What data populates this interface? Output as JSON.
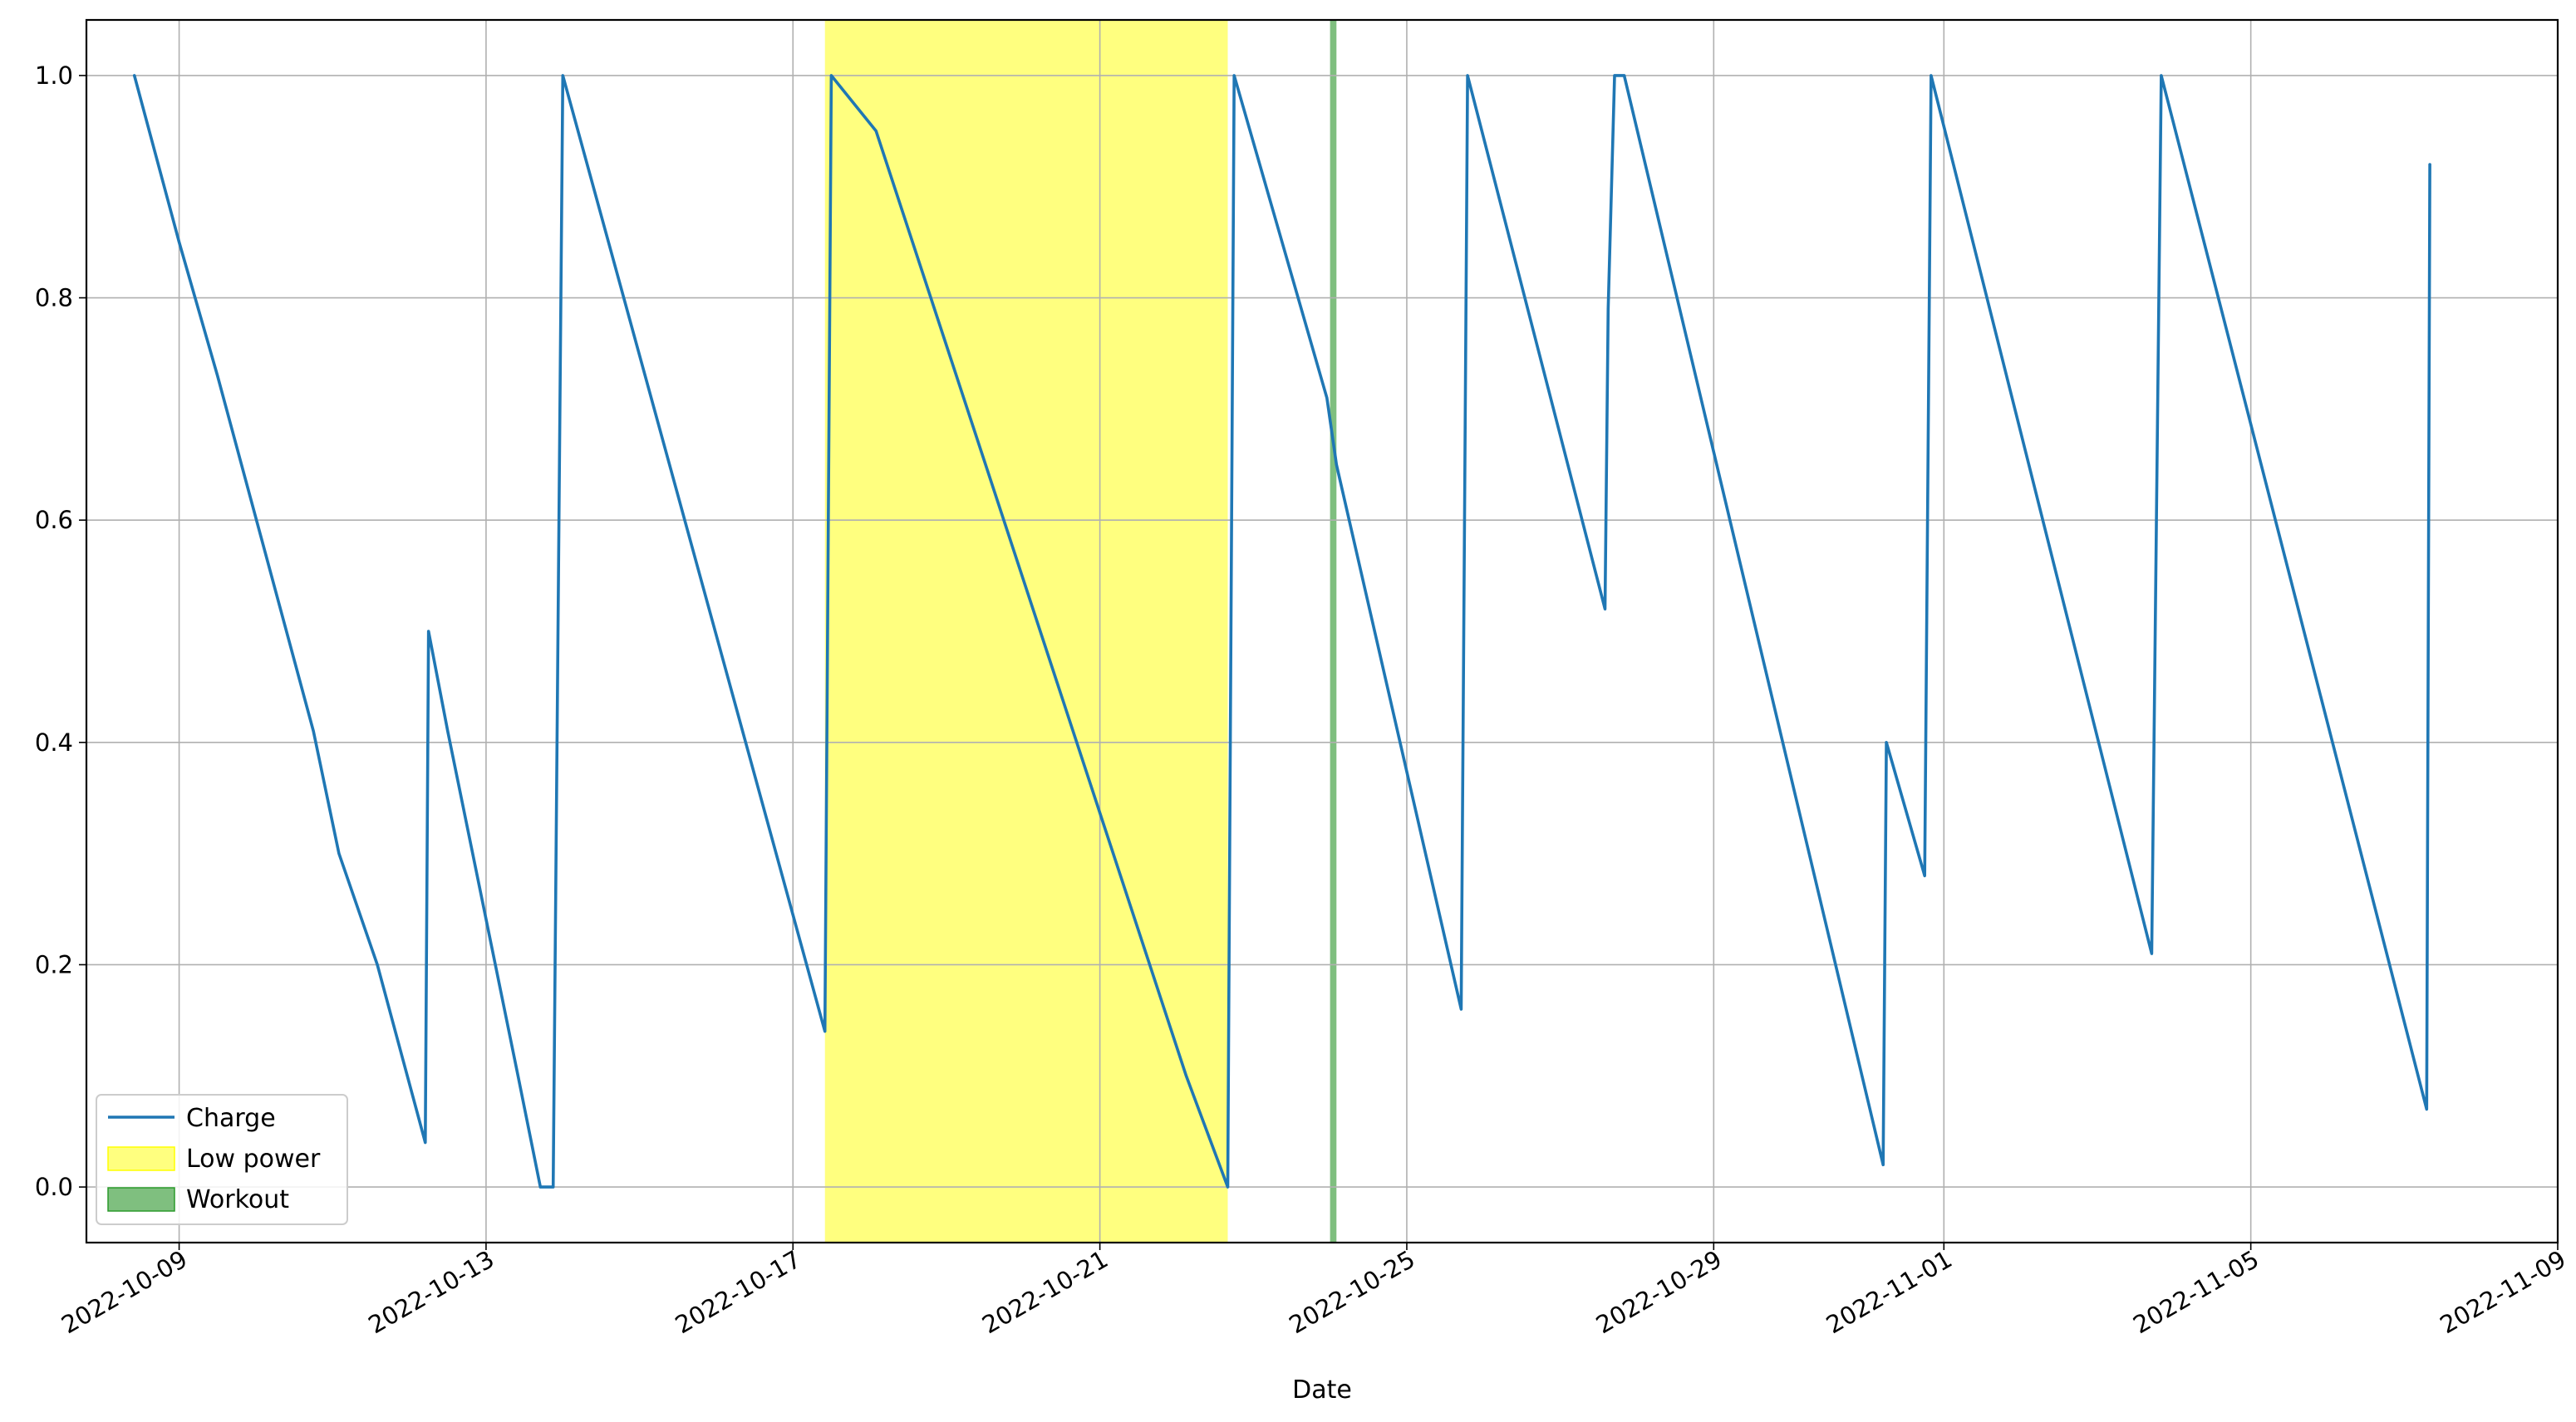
{
  "chart_data": {
    "type": "line",
    "title": "",
    "xlabel": "Date",
    "ylabel": "",
    "x_axis_type": "datetime",
    "xlim": [
      "2022-10-07T19:00",
      "2022-11-09T00:00"
    ],
    "ylim": [
      -0.05,
      1.05
    ],
    "grid": true,
    "legend_position": "lower-left",
    "x_tick_labels": [
      "2022-10-09",
      "2022-10-13",
      "2022-10-17",
      "2022-10-21",
      "2022-10-25",
      "2022-10-29",
      "2022-11-01",
      "2022-11-05",
      "2022-11-09"
    ],
    "y_tick_labels": [
      "0.0",
      "0.2",
      "0.4",
      "0.6",
      "0.8",
      "1.0"
    ],
    "series": [
      {
        "name": "Charge",
        "color": "#1f77b4",
        "points": [
          [
            "2022-10-08T10:00",
            1.0
          ],
          [
            "2022-10-09T00:00",
            0.85
          ],
          [
            "2022-10-09T12:00",
            0.73
          ],
          [
            "2022-10-10T18:00",
            0.41
          ],
          [
            "2022-10-11T02:00",
            0.3
          ],
          [
            "2022-10-11T14:00",
            0.2
          ],
          [
            "2022-10-12T05:00",
            0.04
          ],
          [
            "2022-10-12T06:00",
            0.5
          ],
          [
            "2022-10-12T12:00",
            0.41
          ],
          [
            "2022-10-13T10:00",
            0.1
          ],
          [
            "2022-10-13T17:00",
            0.0
          ],
          [
            "2022-10-13T21:00",
            0.0
          ],
          [
            "2022-10-14T00:00",
            1.0
          ],
          [
            "2022-10-17T10:00",
            0.14
          ],
          [
            "2022-10-17T12:00",
            1.0
          ],
          [
            "2022-10-18T02:00",
            0.95
          ],
          [
            "2022-10-22T03:00",
            0.1
          ],
          [
            "2022-10-22T16:00",
            0.0
          ],
          [
            "2022-10-22T18:00",
            1.0
          ],
          [
            "2022-10-23T23:00",
            0.71
          ],
          [
            "2022-10-24T02:00",
            0.65
          ],
          [
            "2022-10-25T17:00",
            0.16
          ],
          [
            "2022-10-25T19:00",
            1.0
          ],
          [
            "2022-10-27T14:00",
            0.52
          ],
          [
            "2022-10-27T15:00",
            0.79
          ],
          [
            "2022-10-27T17:00",
            1.0
          ],
          [
            "2022-10-27T20:00",
            1.0
          ],
          [
            "2022-10-31T05:00",
            0.02
          ],
          [
            "2022-10-31T06:00",
            0.4
          ],
          [
            "2022-10-31T18:00",
            0.28
          ],
          [
            "2022-10-31T20:00",
            1.0
          ],
          [
            "2022-11-03T17:00",
            0.21
          ],
          [
            "2022-11-03T20:00",
            1.0
          ],
          [
            "2022-11-07T07:00",
            0.07
          ],
          [
            "2022-11-07T08:00",
            0.92
          ]
        ]
      }
    ],
    "spans": [
      {
        "name": "Low power",
        "color": "#ffff00",
        "opacity": 0.5,
        "start": "2022-10-17T10:00",
        "end": "2022-10-22T16:00"
      },
      {
        "name": "Workout",
        "color": "#008000",
        "opacity": 0.5,
        "start": "2022-10-24T00:00",
        "end": "2022-10-24T02:00"
      }
    ],
    "legend": [
      {
        "label": "Charge",
        "kind": "line",
        "color": "#1f77b4"
      },
      {
        "label": "Low power",
        "kind": "patch",
        "color": "#ffff00",
        "opacity": 0.5,
        "edge": "#ffff00"
      },
      {
        "label": "Workout",
        "kind": "patch",
        "color": "#008000",
        "opacity": 0.5,
        "edge": "#2a9a2a"
      }
    ]
  }
}
